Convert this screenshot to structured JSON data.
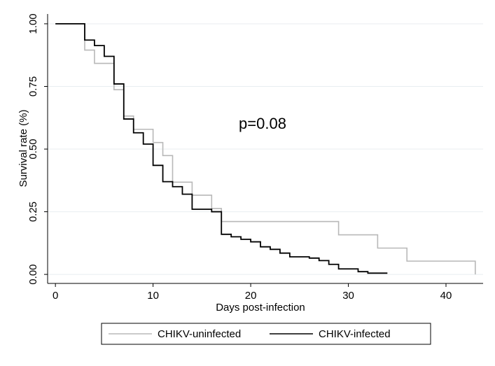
{
  "chart_data": {
    "type": "step",
    "ylabel": "Survival rate (%)",
    "xlabel": "Days post-infection",
    "annotation": "p=0.08",
    "xlim": [
      -0.8,
      43.8
    ],
    "xticks": [
      0,
      10,
      20,
      30,
      40
    ],
    "ylim": [
      -0.036,
      1.039
    ],
    "yticks": [
      {
        "value": 0,
        "label": "0.00"
      },
      {
        "value": 0.25,
        "label": "0.25"
      },
      {
        "value": 0.5,
        "label": "0.50"
      },
      {
        "value": 0.75,
        "label": "0.75"
      },
      {
        "value": 1,
        "label": "1.00"
      }
    ],
    "grid": true,
    "legend": "bottom",
    "series": [
      {
        "name": "CHIKV-uninfected",
        "color": "#b8b8b8",
        "x": [
          0,
          3,
          4,
          6,
          7,
          8,
          10,
          11,
          12,
          14,
          16,
          17,
          29,
          33,
          36,
          43
        ],
        "values": [
          1,
          0.895,
          0.842,
          0.737,
          0.632,
          0.579,
          0.526,
          0.474,
          0.368,
          0.316,
          0.263,
          0.211,
          0.158,
          0.105,
          0.053,
          0
        ]
      },
      {
        "name": "CHIKV-infected",
        "color": "#000000",
        "x": [
          0,
          3,
          4,
          5,
          6,
          7,
          8,
          9,
          10,
          11,
          12,
          13,
          14,
          16,
          17,
          18,
          19,
          20,
          21,
          22,
          23,
          24,
          26,
          27,
          28,
          29,
          31,
          32,
          34
        ],
        "values": [
          1,
          0.935,
          0.913,
          0.87,
          0.76,
          0.62,
          0.565,
          0.52,
          0.435,
          0.37,
          0.35,
          0.32,
          0.26,
          0.25,
          0.16,
          0.15,
          0.14,
          0.13,
          0.11,
          0.1,
          0.085,
          0.07,
          0.065,
          0.055,
          0.04,
          0.022,
          0.011,
          0.005,
          0.005
        ]
      }
    ]
  }
}
